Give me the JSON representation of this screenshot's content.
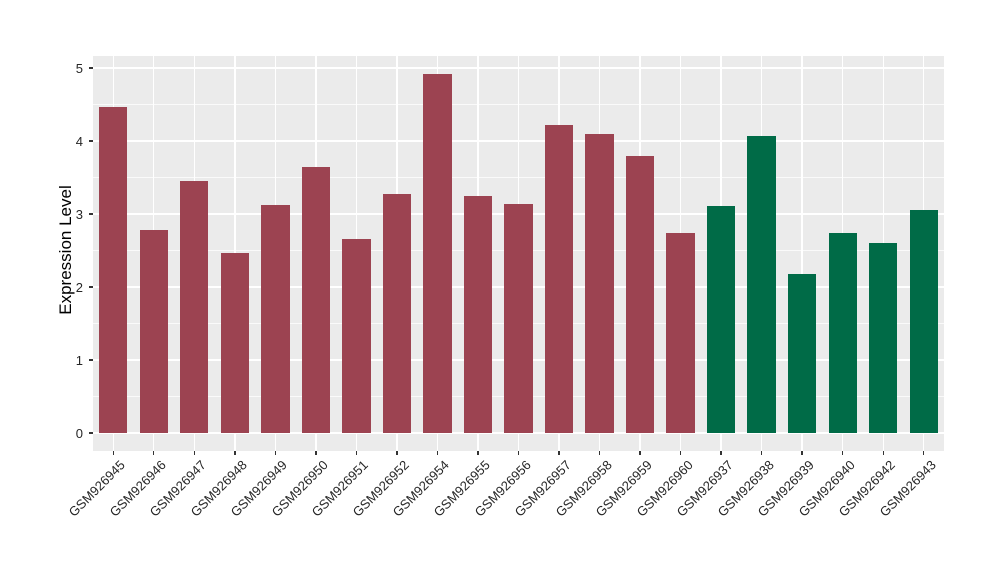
{
  "chart_data": {
    "type": "bar",
    "title": "",
    "xlabel": "",
    "ylabel": "Expression Level",
    "ylim": [
      0,
      5
    ],
    "yticks": [
      0,
      1,
      2,
      3,
      4,
      5
    ],
    "y_minor_ticks_interval": 0.5,
    "grid": "white major and minor gridlines on gray panel",
    "legend_position": "none",
    "panel_background": "#EBEBEB",
    "gridline_color": "#FFFFFF",
    "axis_text_color": "#262626",
    "categories": [
      "GSM926945",
      "GSM926946",
      "GSM926947",
      "GSM926948",
      "GSM926949",
      "GSM926950",
      "GSM926951",
      "GSM926952",
      "GSM926954",
      "GSM926955",
      "GSM926956",
      "GSM926957",
      "GSM926958",
      "GSM926959",
      "GSM926960",
      "GSM926937",
      "GSM926938",
      "GSM926939",
      "GSM926940",
      "GSM926942",
      "GSM926943"
    ],
    "values": [
      4.47,
      2.78,
      3.45,
      2.47,
      3.12,
      3.64,
      2.66,
      3.27,
      4.92,
      3.25,
      3.14,
      4.22,
      4.1,
      3.79,
      2.74,
      3.11,
      4.07,
      2.18,
      2.74,
      2.6,
      3.05
    ],
    "groups": [
      "maroon",
      "maroon",
      "maroon",
      "maroon",
      "maroon",
      "maroon",
      "maroon",
      "maroon",
      "maroon",
      "maroon",
      "maroon",
      "maroon",
      "maroon",
      "maroon",
      "maroon",
      "green",
      "green",
      "green",
      "green",
      "green",
      "green"
    ],
    "group_colors": {
      "maroon": "#9C4351",
      "green": "#006B47"
    }
  }
}
